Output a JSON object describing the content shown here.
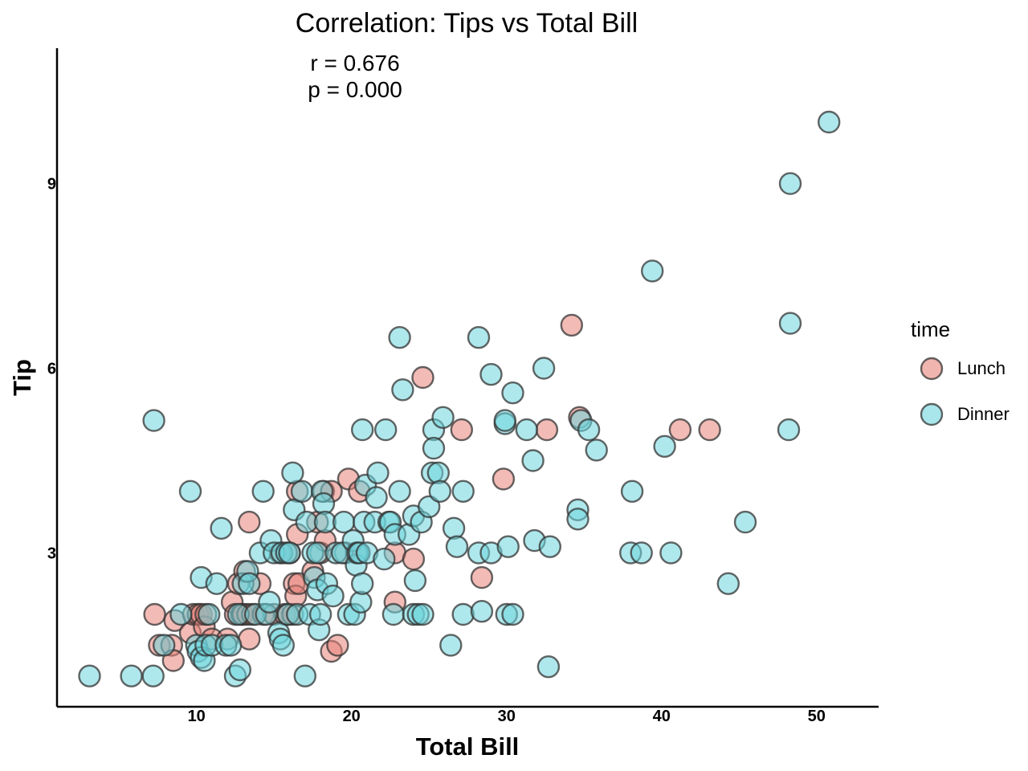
{
  "chart_data": {
    "type": "scatter",
    "title": "Correlation: Tips vs Total Bill",
    "annotation": [
      "r = 0.676",
      "p = 0.000"
    ],
    "xlabel": "Total Bill",
    "ylabel": "Tip",
    "xlim": [
      1,
      54
    ],
    "ylim": [
      0.5,
      11.2
    ],
    "xticks": [
      10,
      20,
      30,
      40,
      50
    ],
    "yticks": [
      3,
      6,
      9
    ],
    "grid": false,
    "legend": {
      "title": "time",
      "placement": "right"
    },
    "series": [
      {
        "name": "Lunch",
        "color": "#e8847a",
        "points": [
          [
            7.3,
            2.0
          ],
          [
            7.6,
            1.5
          ],
          [
            8.4,
            1.5
          ],
          [
            8.5,
            1.25
          ],
          [
            8.6,
            1.9
          ],
          [
            9.6,
            1.7
          ],
          [
            9.8,
            2.0
          ],
          [
            10.1,
            2.0
          ],
          [
            10.3,
            2.0
          ],
          [
            10.5,
            1.8
          ],
          [
            10.6,
            2.0
          ],
          [
            11.0,
            1.6
          ],
          [
            12.0,
            1.6
          ],
          [
            12.3,
            2.2
          ],
          [
            12.5,
            2.0
          ],
          [
            12.7,
            2.5
          ],
          [
            12.9,
            2.0
          ],
          [
            13.0,
            2.0
          ],
          [
            13.1,
            2.7
          ],
          [
            13.3,
            2.0
          ],
          [
            13.4,
            1.6
          ],
          [
            13.4,
            3.5
          ],
          [
            13.6,
            2.0
          ],
          [
            14.1,
            2.5
          ],
          [
            14.3,
            2.0
          ],
          [
            15.0,
            2.0
          ],
          [
            15.4,
            3.0
          ],
          [
            15.7,
            2.0
          ],
          [
            15.9,
            2.0
          ],
          [
            16.0,
            3.0
          ],
          [
            16.2,
            2.0
          ],
          [
            16.3,
            2.5
          ],
          [
            16.4,
            2.3
          ],
          [
            16.5,
            3.3
          ],
          [
            16.5,
            4.0
          ],
          [
            16.6,
            2.5
          ],
          [
            17.5,
            2.7
          ],
          [
            17.8,
            3.5
          ],
          [
            18.0,
            3.0
          ],
          [
            18.2,
            4.0
          ],
          [
            18.3,
            3.2
          ],
          [
            18.7,
            4.0
          ],
          [
            18.7,
            1.4
          ],
          [
            19.1,
            1.5
          ],
          [
            19.6,
            3.0
          ],
          [
            19.8,
            4.2
          ],
          [
            20.3,
            3.0
          ],
          [
            20.5,
            4.0
          ],
          [
            22.8,
            3.0
          ],
          [
            22.8,
            2.2
          ],
          [
            24.0,
            2.9
          ],
          [
            24.6,
            5.85
          ],
          [
            27.1,
            5.0
          ],
          [
            28.4,
            2.6
          ],
          [
            29.8,
            4.2
          ],
          [
            32.6,
            5.0
          ],
          [
            34.2,
            6.7
          ],
          [
            34.7,
            5.2
          ],
          [
            41.2,
            5.0
          ],
          [
            43.1,
            5.0
          ]
        ]
      },
      {
        "name": "Dinner",
        "color": "#6ed6dd",
        "points": [
          [
            3.1,
            1.0
          ],
          [
            5.8,
            1.0
          ],
          [
            7.2,
            1.0
          ],
          [
            7.25,
            5.15
          ],
          [
            7.9,
            1.5
          ],
          [
            9.0,
            2.0
          ],
          [
            9.6,
            4.0
          ],
          [
            10.0,
            1.5
          ],
          [
            10.1,
            1.4
          ],
          [
            10.3,
            1.3
          ],
          [
            10.3,
            2.6
          ],
          [
            10.5,
            1.25
          ],
          [
            10.6,
            1.5
          ],
          [
            10.8,
            2.0
          ],
          [
            11.0,
            1.5
          ],
          [
            11.3,
            2.5
          ],
          [
            11.6,
            3.4
          ],
          [
            11.9,
            1.5
          ],
          [
            12.2,
            1.5
          ],
          [
            12.5,
            1.0
          ],
          [
            12.7,
            2.0
          ],
          [
            12.8,
            1.1
          ],
          [
            13.0,
            2.5
          ],
          [
            13.3,
            2.7
          ],
          [
            13.4,
            2.5
          ],
          [
            13.8,
            2.0
          ],
          [
            14.1,
            3.0
          ],
          [
            14.3,
            4.0
          ],
          [
            14.5,
            2.0
          ],
          [
            14.7,
            2.2
          ],
          [
            14.8,
            3.2
          ],
          [
            15.0,
            3.0
          ],
          [
            15.3,
            1.7
          ],
          [
            15.4,
            1.6
          ],
          [
            15.5,
            3.0
          ],
          [
            15.6,
            1.5
          ],
          [
            15.8,
            3.0
          ],
          [
            15.9,
            2.0
          ],
          [
            16.0,
            3.0
          ],
          [
            16.2,
            4.3
          ],
          [
            16.3,
            3.7
          ],
          [
            16.5,
            2.0
          ],
          [
            16.8,
            4.0
          ],
          [
            17.0,
            1.0
          ],
          [
            17.1,
            3.5
          ],
          [
            17.3,
            2.0
          ],
          [
            17.5,
            3.0
          ],
          [
            17.6,
            2.6
          ],
          [
            17.8,
            2.4
          ],
          [
            17.8,
            3.0
          ],
          [
            17.9,
            1.75
          ],
          [
            18.0,
            2.0
          ],
          [
            18.1,
            4.0
          ],
          [
            18.2,
            3.8
          ],
          [
            18.3,
            3.5
          ],
          [
            18.4,
            2.5
          ],
          [
            18.8,
            2.3
          ],
          [
            19.0,
            3.0
          ],
          [
            19.4,
            3.0
          ],
          [
            19.5,
            3.5
          ],
          [
            19.8,
            2.0
          ],
          [
            20.1,
            3.2
          ],
          [
            20.2,
            2.0
          ],
          [
            20.3,
            2.8
          ],
          [
            20.4,
            3.0
          ],
          [
            20.5,
            3.0
          ],
          [
            20.6,
            2.2
          ],
          [
            20.7,
            2.5
          ],
          [
            20.7,
            5.0
          ],
          [
            20.8,
            3.5
          ],
          [
            20.9,
            4.1
          ],
          [
            21.0,
            3.0
          ],
          [
            21.5,
            3.5
          ],
          [
            21.6,
            3.9
          ],
          [
            21.7,
            4.3
          ],
          [
            22.1,
            2.9
          ],
          [
            22.2,
            5.0
          ],
          [
            22.4,
            3.5
          ],
          [
            22.5,
            3.5
          ],
          [
            22.7,
            2.0
          ],
          [
            22.8,
            3.3
          ],
          [
            23.1,
            4.0
          ],
          [
            23.1,
            6.5
          ],
          [
            23.3,
            5.65
          ],
          [
            23.7,
            3.3
          ],
          [
            24.0,
            2.0
          ],
          [
            24.0,
            3.6
          ],
          [
            24.1,
            2.55
          ],
          [
            24.3,
            2.0
          ],
          [
            24.5,
            3.5
          ],
          [
            24.6,
            2.0
          ],
          [
            25.0,
            3.75
          ],
          [
            25.2,
            4.3
          ],
          [
            25.3,
            5.0
          ],
          [
            25.3,
            4.7
          ],
          [
            25.6,
            4.3
          ],
          [
            25.7,
            4.0
          ],
          [
            25.9,
            5.2
          ],
          [
            26.4,
            1.5
          ],
          [
            26.6,
            3.4
          ],
          [
            26.8,
            3.1
          ],
          [
            27.2,
            4.0
          ],
          [
            27.2,
            2.0
          ],
          [
            28.2,
            3.0
          ],
          [
            28.2,
            6.5
          ],
          [
            28.4,
            2.05
          ],
          [
            29.0,
            3.0
          ],
          [
            29.0,
            5.9
          ],
          [
            29.9,
            5.1
          ],
          [
            29.9,
            5.15
          ],
          [
            30.0,
            2.0
          ],
          [
            30.1,
            3.1
          ],
          [
            30.4,
            2.0
          ],
          [
            30.4,
            5.6
          ],
          [
            31.3,
            5.0
          ],
          [
            31.7,
            4.5
          ],
          [
            31.8,
            3.2
          ],
          [
            32.4,
            6.0
          ],
          [
            32.7,
            1.15
          ],
          [
            32.8,
            3.1
          ],
          [
            34.6,
            3.7
          ],
          [
            34.6,
            3.55
          ],
          [
            34.8,
            5.15
          ],
          [
            35.3,
            5.0
          ],
          [
            35.8,
            4.67
          ],
          [
            38.0,
            3.0
          ],
          [
            38.1,
            4.0
          ],
          [
            38.7,
            3.0
          ],
          [
            39.4,
            7.58
          ],
          [
            40.2,
            4.73
          ],
          [
            40.6,
            3.0
          ],
          [
            44.3,
            2.5
          ],
          [
            45.4,
            3.5
          ],
          [
            48.2,
            5.0
          ],
          [
            48.3,
            6.73
          ],
          [
            48.3,
            9.0
          ],
          [
            50.8,
            10.0
          ]
        ]
      }
    ]
  }
}
